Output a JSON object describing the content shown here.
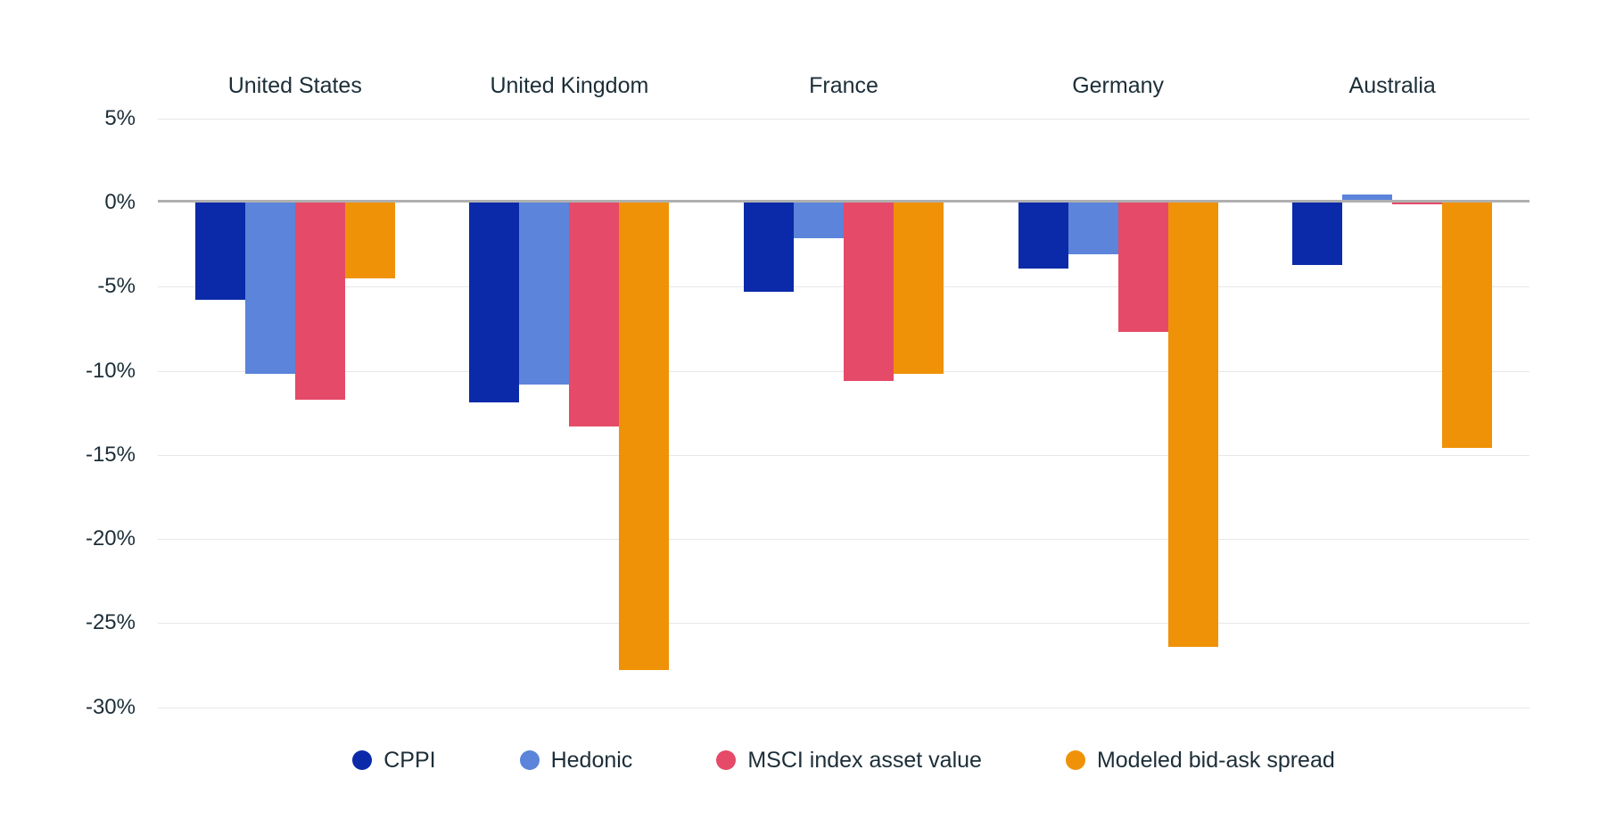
{
  "chart": {
    "background_color": "#ffffff",
    "text_color": "#1c2e38",
    "gridline_color": "#e7e7e7",
    "zero_line_color": "#b0b0b0"
  },
  "chart_data": {
    "type": "bar",
    "orientation": "vertical",
    "grouped": true,
    "title": "",
    "xlabel": "",
    "ylabel": "",
    "y_unit": "%",
    "ylim": [
      -30,
      5
    ],
    "grid": true,
    "legend_position": "bottom",
    "categories": [
      "United States",
      "United Kingdom",
      "France",
      "Germany",
      "Australia"
    ],
    "series": [
      {
        "name": "CPPI",
        "color": "#0b2aa9",
        "values": [
          -5.8,
          -11.9,
          -5.3,
          -3.9,
          -3.7
        ]
      },
      {
        "name": "Hedonic",
        "color": "#5b84da",
        "values": [
          -10.2,
          -10.8,
          -2.1,
          -3.1,
          0.5
        ]
      },
      {
        "name": "MSCI index asset value",
        "color": "#e54a68",
        "values": [
          -11.7,
          -13.3,
          -10.6,
          -7.7,
          -0.1
        ]
      },
      {
        "name": "Modeled bid-ask spread",
        "color": "#ef9207",
        "values": [
          -4.5,
          -27.8,
          -10.2,
          -26.4,
          -14.6
        ]
      }
    ],
    "y_ticks": [
      {
        "label": "5%",
        "value": 5
      },
      {
        "label": "0%",
        "value": 0
      },
      {
        "label": "-5%",
        "value": -5
      },
      {
        "label": "-10%",
        "value": -10
      },
      {
        "label": "-15%",
        "value": -15
      },
      {
        "label": "-20%",
        "value": -20
      },
      {
        "label": "-25%",
        "value": -25
      },
      {
        "label": "-30%",
        "value": -30
      }
    ]
  }
}
